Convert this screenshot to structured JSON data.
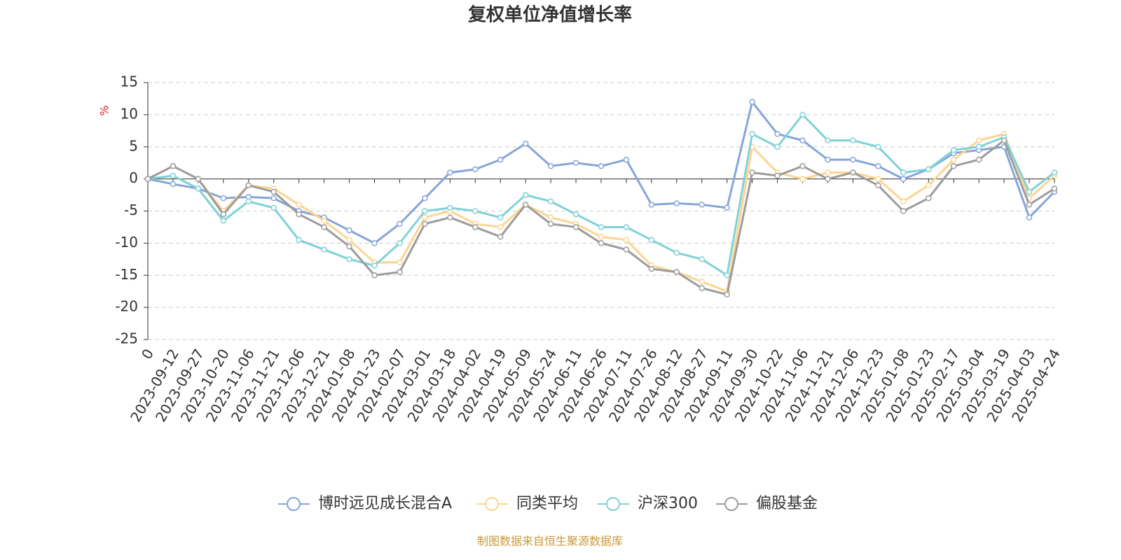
{
  "chart_data": {
    "type": "line",
    "title": "复权单位净值增长率",
    "y_label": "%",
    "source": "制图数据来自恒生聚源数据库",
    "categories": [
      "0",
      "2023-09-12",
      "2023-09-27",
      "2023-10-20",
      "2023-11-06",
      "2023-11-21",
      "2023-12-06",
      "2023-12-21",
      "2024-01-08",
      "2024-01-23",
      "2024-02-07",
      "2024-03-01",
      "2024-03-18",
      "2024-04-02",
      "2024-04-19",
      "2024-05-09",
      "2024-05-24",
      "2024-06-11",
      "2024-06-26",
      "2024-07-11",
      "2024-07-26",
      "2024-08-12",
      "2024-08-27",
      "2024-09-11",
      "2024-09-30",
      "2024-10-22",
      "2024-11-06",
      "2024-11-21",
      "2024-12-06",
      "2024-12-23",
      "2025-01-08",
      "2025-01-23",
      "2025-02-17",
      "2025-03-04",
      "2025-03-19",
      "2025-04-03",
      "2025-04-24"
    ],
    "series": [
      {
        "name": "博时远见成长混合A",
        "color": "#86a5d9",
        "values": [
          0,
          -0.8,
          -1.5,
          -3,
          -2.8,
          -3,
          -5,
          -6,
          -8,
          -10,
          -7,
          -3,
          1,
          1.5,
          3,
          5.5,
          2,
          2.5,
          2,
          3,
          -4,
          -3.8,
          -4,
          -4.5,
          12,
          7,
          6,
          3,
          3,
          2,
          0,
          1.5,
          4,
          4.5,
          5,
          -6,
          -2
        ]
      },
      {
        "name": "同类平均",
        "color": "#fdd590",
        "values": [
          0,
          2,
          0,
          -5,
          -1,
          -1.5,
          -4,
          -6.5,
          -9.5,
          -13,
          -13,
          -6,
          -5,
          -7,
          -7.5,
          -4,
          -6,
          -7,
          -9,
          -9.5,
          -13.5,
          -14.5,
          -16,
          -17.5,
          5,
          1,
          0,
          1,
          1,
          0,
          -3.5,
          -1,
          3,
          6,
          7,
          -3,
          0.5
        ]
      },
      {
        "name": "沪深300",
        "color": "#7fd2d6",
        "values": [
          0,
          0.5,
          -1.5,
          -6.5,
          -3.5,
          -4.5,
          -9.5,
          -11,
          -12.5,
          -13.5,
          -10,
          -5,
          -4.5,
          -5,
          -6,
          -2.5,
          -3.5,
          -5.5,
          -7.5,
          -7.5,
          -9.5,
          -11.5,
          -12.5,
          -15,
          7,
          5,
          10,
          6,
          6,
          5,
          1,
          1.5,
          4.5,
          5,
          6.5,
          -2,
          1
        ]
      },
      {
        "name": "偏股基金",
        "color": "#9c9c9c",
        "values": [
          0,
          2,
          0,
          -5.5,
          -1,
          -2,
          -5.5,
          -7.5,
          -10.5,
          -15,
          -14.5,
          -7,
          -6,
          -7.5,
          -9,
          -4,
          -7,
          -7.5,
          -10,
          -11,
          -14,
          -14.5,
          -17,
          -18,
          1,
          0.5,
          2,
          0,
          1,
          -1,
          -5,
          -3,
          2,
          3,
          6,
          -4,
          -1.5
        ]
      }
    ],
    "ylim": [
      -25,
      15
    ],
    "yticks": [
      -25,
      -20,
      -15,
      -10,
      -5,
      0,
      5,
      10,
      15
    ],
    "grid": true
  }
}
